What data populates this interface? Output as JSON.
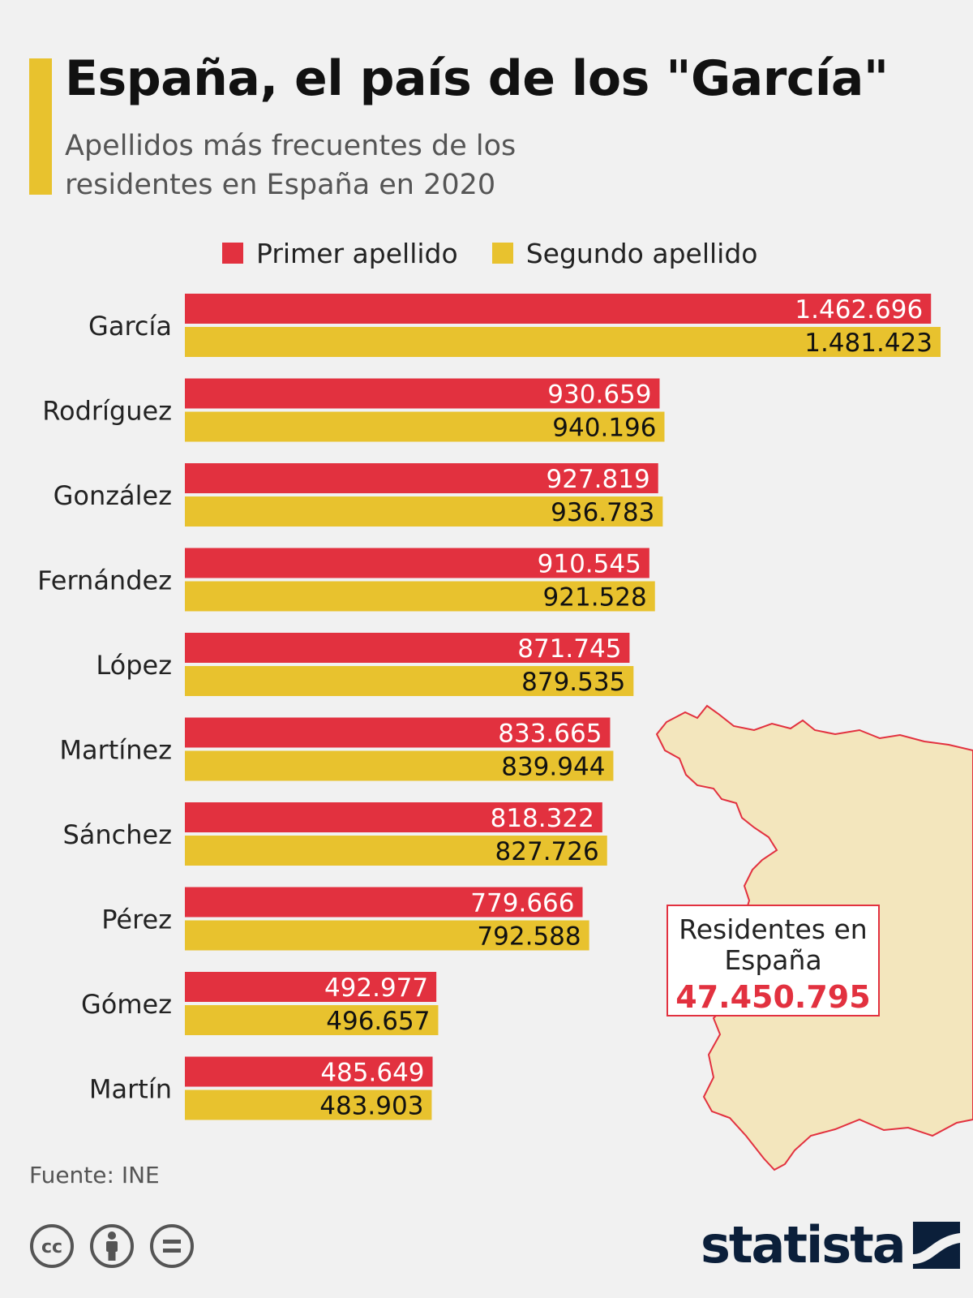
{
  "header": {
    "title": "España, el país de los \"García\"",
    "subtitle": "Apellidos más frecuentes de los residentes en España en 2020"
  },
  "chart_data": {
    "type": "bar",
    "orientation": "horizontal",
    "categories": [
      "García",
      "Rodríguez",
      "González",
      "Fernández",
      "López",
      "Martínez",
      "Sánchez",
      "Pérez",
      "Gómez",
      "Martín"
    ],
    "series": [
      {
        "name": "Primer apellido",
        "color": "#e2313f",
        "values": [
          1462696,
          930659,
          927819,
          910545,
          871745,
          833665,
          818322,
          779666,
          492977,
          485649
        ],
        "labels": [
          "1.462.696",
          "930.659",
          "927.819",
          "910.545",
          "871.745",
          "833.665",
          "818.322",
          "779.666",
          "492.977",
          "485.649"
        ]
      },
      {
        "name": "Segundo apellido",
        "color": "#e8c22e",
        "values": [
          1481423,
          940196,
          936783,
          921528,
          879535,
          839944,
          827726,
          792588,
          496657,
          483903
        ],
        "labels": [
          "1.481.423",
          "940.196",
          "936.783",
          "921.528",
          "879.535",
          "839.944",
          "827.726",
          "792.588",
          "496.657",
          "483.903"
        ]
      }
    ],
    "xlim": [
      0,
      1481423
    ],
    "legend_position": "top",
    "grid": false
  },
  "callout": {
    "label": "Residentes en España",
    "value": "47.450.795"
  },
  "footer": {
    "source": "Fuente: INE",
    "brand": "statista",
    "license_icons": [
      "cc-icon",
      "by-person-icon",
      "nd-equals-icon"
    ]
  },
  "colors": {
    "background": "#f1f1f1",
    "primary_bar": "#e2313f",
    "secondary_bar": "#e8c22e",
    "map_fill": "#f3e6bd",
    "brand": "#0b1f3a"
  }
}
